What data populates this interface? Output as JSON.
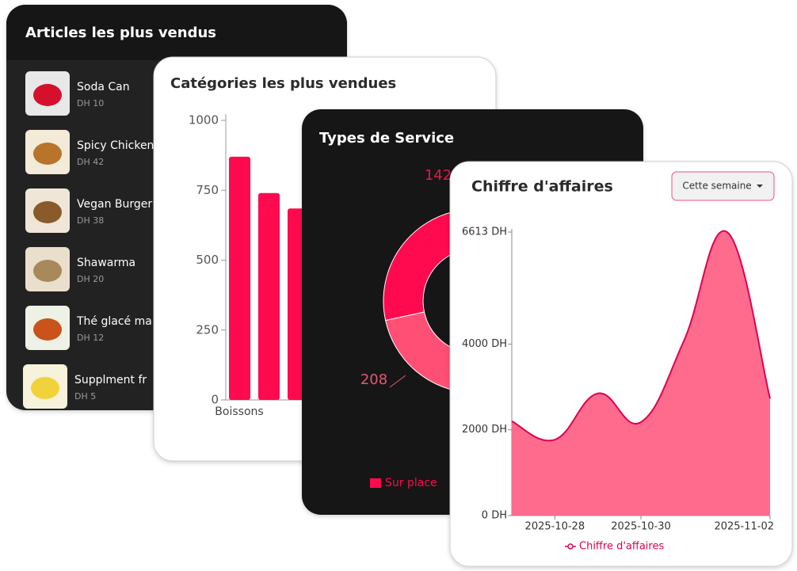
{
  "articles_card": {
    "title": "Articles les plus vendus",
    "items": [
      {
        "name": "Soda Can",
        "price": "DH 10"
      },
      {
        "name": "Spicy Chicken",
        "price": "DH 42"
      },
      {
        "name": "Vegan Burger",
        "price": "DH 38"
      },
      {
        "name": "Shawarma",
        "price": "DH 20"
      },
      {
        "name": "Thé glacé ma",
        "price": "DH 12"
      },
      {
        "name": "Supplment fr",
        "price": "DH 5"
      }
    ]
  },
  "categories_card": {
    "title": "Catégories les plus vendues",
    "chart": {
      "type": "bar",
      "categories": [
        "Boissons",
        null,
        null
      ],
      "values": [
        870,
        740,
        685
      ],
      "color": "#ff0a4e",
      "ylim": [
        0,
        1000
      ],
      "yticks": [
        0,
        250,
        500,
        750,
        1000
      ]
    }
  },
  "service_card": {
    "title": "Types de Service",
    "chart": {
      "type": "doughnut",
      "labels": [
        "Sur place",
        null,
        null
      ],
      "values": [
        142,
        208,
        150
      ],
      "colors": [
        "#ff0a4e",
        "#ff4f75",
        "#ff8fa8"
      ]
    }
  },
  "revenue_card": {
    "title": "Chiffre d'affaires",
    "period": "Cette semaine",
    "chart": {
      "type": "area",
      "x": [
        null,
        "2025-10-28",
        null,
        "2025-10-30",
        null,
        null,
        "2025-11-02"
      ],
      "series": [
        {
          "name": "Chiffre d'affaires",
          "color": "#ff6b8d",
          "values": [
            2200,
            1770,
            2850,
            2180,
            4080,
            6613,
            2730
          ]
        }
      ],
      "ylim": [
        0,
        6613
      ],
      "yticks": [
        {
          "value": 0,
          "label": "0 DH"
        },
        {
          "value": 2000,
          "label": "2000 DH"
        },
        {
          "value": 4000,
          "label": "4000 DH"
        },
        {
          "value": 6613,
          "label": "6613 DH"
        }
      ]
    }
  }
}
